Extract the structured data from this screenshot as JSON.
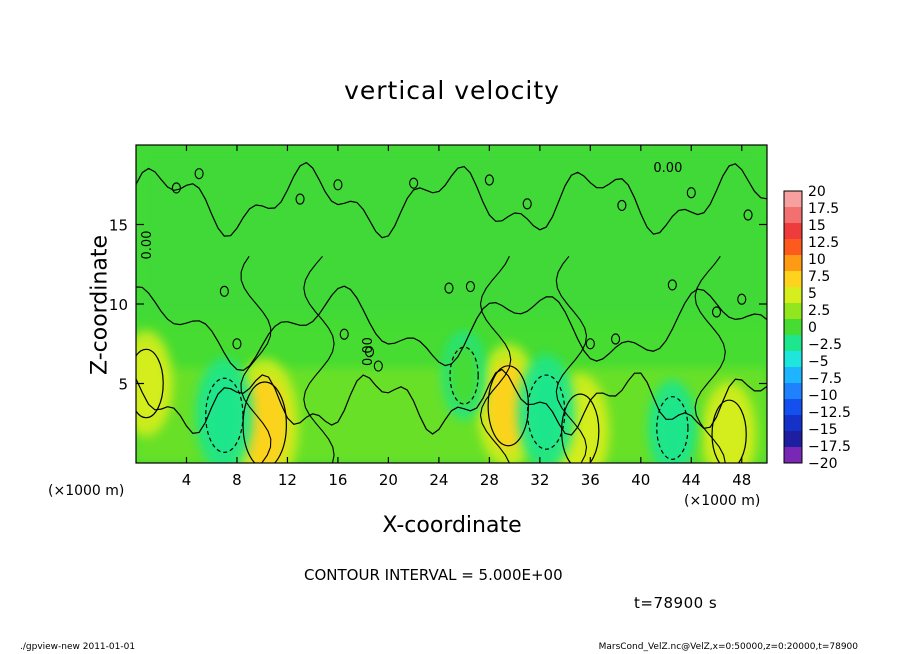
{
  "title": "vertical velocity",
  "contour_interval_text": "CONTOUR INTERVAL = 5.000E+00",
  "time_text": "t=78900 s",
  "footer_left": "./gpview-new  2011-01-01",
  "footer_right": "MarsCond_VelZ.nc@VelZ,x=0:50000,z=0:20000,t=78900",
  "x_unit_left": "(×1000 m)",
  "x_unit_right": "(×1000 m)",
  "chart_data": {
    "type": "heatmap",
    "title": "vertical velocity",
    "xlabel": "X-coordinate",
    "ylabel": "Z-coordinate",
    "xlim": [
      0,
      50
    ],
    "ylim": [
      0,
      20
    ],
    "x_ticks": [
      4,
      8,
      12,
      16,
      20,
      24,
      28,
      32,
      36,
      40,
      44,
      48
    ],
    "y_ticks": [
      5,
      10,
      15
    ],
    "contour_interval": 5.0,
    "contour_labels": [
      "0.00",
      "0.00",
      "0.00"
    ],
    "colorbar": {
      "levels": [
        "20",
        "17.5",
        "15",
        "12.5",
        "10",
        "7.5",
        "5",
        "2.5",
        "0",
        "−2.5",
        "−5",
        "−7.5",
        "−10",
        "−12.5",
        "−15",
        "−17.5",
        "−20"
      ],
      "colors": [
        "#f7a0a0",
        "#f27070",
        "#ee3c3c",
        "#ff5a1e",
        "#ff9a14",
        "#ffd21e",
        "#d6ee1e",
        "#92e61e",
        "#46dc32",
        "#1ee68c",
        "#1ee6dc",
        "#1eb4ff",
        "#1e82ff",
        "#1450f0",
        "#1432c8",
        "#1e1ea0",
        "#7828b4"
      ]
    },
    "features": [
      {
        "type": "updraft",
        "x": 10.2,
        "z": 2.4,
        "value": 8
      },
      {
        "type": "updraft",
        "x": 29.5,
        "z": 3.6,
        "value": 7
      },
      {
        "type": "updraft",
        "x": 35.2,
        "z": 2.0,
        "value": 6
      },
      {
        "type": "updraft",
        "x": 47.0,
        "z": 1.8,
        "value": 5
      },
      {
        "type": "updraft",
        "x": 0.8,
        "z": 5.0,
        "value": 5
      },
      {
        "type": "downdraft",
        "x": 7.0,
        "z": 3.0,
        "value": -6
      },
      {
        "type": "downdraft",
        "x": 32.5,
        "z": 3.2,
        "value": -6
      },
      {
        "type": "downdraft",
        "x": 42.5,
        "z": 2.2,
        "value": -4
      },
      {
        "type": "downdraft",
        "x": 26.0,
        "z": 5.5,
        "value": -3
      }
    ]
  }
}
